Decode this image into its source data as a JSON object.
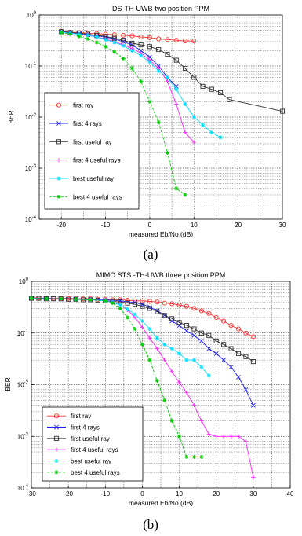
{
  "chart_data": [
    {
      "type": "line",
      "title": "DS-TH-UWB-two position PPM",
      "xlabel": "measured Eb/No (dB)",
      "ylabel": "BER",
      "caption": "(a)",
      "xlim": [
        -25,
        30
      ],
      "ylim": [
        0.0001,
        1
      ],
      "yscale": "log",
      "grid": true,
      "legend_position": "left-middle",
      "xticks": [
        "-20",
        "-10",
        "0",
        "10",
        "20",
        "30"
      ],
      "yticks": [
        "10",
        "10",
        "10",
        "10",
        "10"
      ],
      "ytick_exponents": [
        "0",
        "-1",
        "-2",
        "-3",
        "-4"
      ],
      "series": [
        {
          "name": "first ray",
          "color": "#ff3030",
          "marker": "circle",
          "dash": "solid",
          "x": [
            -20,
            -18,
            -16,
            -14,
            -12,
            -10,
            -8,
            -6,
            -4,
            -2,
            0,
            2,
            4,
            6,
            8,
            10
          ],
          "y": [
            0.48,
            0.46,
            0.45,
            0.44,
            0.43,
            0.42,
            0.41,
            0.4,
            0.39,
            0.37,
            0.36,
            0.34,
            0.33,
            0.32,
            0.31,
            0.31
          ]
        },
        {
          "name": "first 4 rays",
          "color": "#2020ff",
          "marker": "x",
          "dash": "solid",
          "x": [
            -20,
            -18,
            -16,
            -14,
            -12,
            -10,
            -8,
            -6,
            -4,
            -2,
            0,
            2,
            4,
            6
          ],
          "y": [
            0.47,
            0.45,
            0.43,
            0.41,
            0.39,
            0.37,
            0.34,
            0.3,
            0.26,
            0.2,
            0.15,
            0.1,
            0.06,
            0.04
          ]
        },
        {
          "name": "first useful ray",
          "color": "#303030",
          "marker": "square",
          "dash": "solid",
          "x": [
            -20,
            -18,
            -16,
            -14,
            -12,
            -10,
            -8,
            -6,
            -4,
            -2,
            0,
            2,
            4,
            6,
            8,
            10,
            12,
            14,
            16,
            18,
            30
          ],
          "y": [
            0.47,
            0.45,
            0.44,
            0.42,
            0.4,
            0.38,
            0.35,
            0.32,
            0.28,
            0.26,
            0.24,
            0.21,
            0.17,
            0.13,
            0.09,
            0.06,
            0.04,
            0.035,
            0.03,
            0.022,
            0.013
          ]
        },
        {
          "name": "first 4 useful rays",
          "color": "#ff20ff",
          "marker": "plus",
          "dash": "solid",
          "x": [
            -20,
            -18,
            -16,
            -14,
            -12,
            -10,
            -8,
            -6,
            -4,
            -2,
            0,
            2,
            4,
            6,
            8,
            10
          ],
          "y": [
            0.46,
            0.44,
            0.42,
            0.4,
            0.37,
            0.34,
            0.3,
            0.26,
            0.22,
            0.18,
            0.13,
            0.09,
            0.05,
            0.018,
            0.005,
            0.0032
          ]
        },
        {
          "name": "best useful ray",
          "color": "#00e0ff",
          "marker": "star",
          "dash": "solid",
          "x": [
            -20,
            -18,
            -16,
            -14,
            -12,
            -10,
            -8,
            -6,
            -4,
            -2,
            0,
            2,
            4,
            6,
            8,
            10,
            12,
            14,
            16
          ],
          "y": [
            0.46,
            0.44,
            0.42,
            0.4,
            0.37,
            0.33,
            0.29,
            0.25,
            0.2,
            0.16,
            0.12,
            0.08,
            0.06,
            0.035,
            0.018,
            0.01,
            0.007,
            0.005,
            0.004
          ]
        },
        {
          "name": "best 4 useful rays",
          "color": "#00cc00",
          "marker": "star",
          "dash": "dashed",
          "x": [
            -20,
            -18,
            -16,
            -14,
            -12,
            -10,
            -8,
            -6,
            -4,
            -2,
            0,
            2,
            4,
            6,
            8
          ],
          "y": [
            0.45,
            0.42,
            0.38,
            0.34,
            0.29,
            0.24,
            0.19,
            0.14,
            0.09,
            0.05,
            0.02,
            0.008,
            0.002,
            0.0004,
            0.0003
          ]
        }
      ]
    },
    {
      "type": "line",
      "title": "MIMO STS -TH-UWB three position PPM",
      "xlabel": "measured Eb/No (dB)",
      "ylabel": "BER",
      "caption": "(b)",
      "xlim": [
        -30,
        40
      ],
      "ylim": [
        0.0001,
        1
      ],
      "yscale": "log",
      "grid": true,
      "legend_position": "bottom-left",
      "xticks": [
        "-30",
        "-20",
        "-10",
        "0",
        "10",
        "20",
        "30",
        "40"
      ],
      "yticks": [
        "10",
        "10",
        "10",
        "10",
        "10"
      ],
      "ytick_exponents": [
        "0",
        "-1",
        "-2",
        "-3",
        "-4"
      ],
      "series": [
        {
          "name": "first ray",
          "color": "#ff3030",
          "marker": "circle",
          "dash": "solid",
          "x": [
            -30,
            -28,
            -26,
            -24,
            -22,
            -20,
            -18,
            -16,
            -14,
            -12,
            -10,
            -8,
            -6,
            -4,
            -2,
            0,
            2,
            4,
            6,
            8,
            10,
            12,
            14,
            16,
            18,
            20,
            22,
            24,
            26,
            28,
            30
          ],
          "y": [
            0.48,
            0.48,
            0.47,
            0.47,
            0.47,
            0.47,
            0.46,
            0.46,
            0.46,
            0.45,
            0.45,
            0.44,
            0.44,
            0.43,
            0.42,
            0.42,
            0.41,
            0.4,
            0.38,
            0.37,
            0.35,
            0.33,
            0.3,
            0.27,
            0.24,
            0.2,
            0.17,
            0.14,
            0.12,
            0.1,
            0.085
          ]
        },
        {
          "name": "first 4 rays",
          "color": "#2020ff",
          "marker": "x",
          "dash": "solid",
          "x": [
            -30,
            -26,
            -22,
            -18,
            -14,
            -10,
            -6,
            -2,
            0,
            2,
            4,
            6,
            8,
            10,
            12,
            14,
            16,
            18,
            20,
            22,
            24,
            26,
            28,
            30
          ],
          "y": [
            0.47,
            0.47,
            0.46,
            0.46,
            0.45,
            0.44,
            0.42,
            0.39,
            0.36,
            0.32,
            0.27,
            0.22,
            0.17,
            0.14,
            0.11,
            0.09,
            0.07,
            0.05,
            0.04,
            0.03,
            0.022,
            0.014,
            0.008,
            0.004
          ]
        },
        {
          "name": "first useful ray",
          "color": "#303030",
          "marker": "square",
          "dash": "solid",
          "x": [
            -30,
            -28,
            -26,
            -24,
            -22,
            -20,
            -18,
            -16,
            -14,
            -12,
            -10,
            -8,
            -6,
            -4,
            -2,
            0,
            2,
            4,
            6,
            8,
            10,
            12,
            14,
            16,
            18,
            20,
            22,
            24,
            26,
            28,
            30
          ],
          "y": [
            0.47,
            0.47,
            0.46,
            0.46,
            0.46,
            0.45,
            0.45,
            0.44,
            0.44,
            0.43,
            0.42,
            0.41,
            0.4,
            0.38,
            0.36,
            0.33,
            0.3,
            0.26,
            0.22,
            0.19,
            0.16,
            0.14,
            0.12,
            0.1,
            0.09,
            0.07,
            0.06,
            0.05,
            0.04,
            0.035,
            0.028
          ]
        },
        {
          "name": "first 4 useful rays",
          "color": "#ff20ff",
          "marker": "plus",
          "dash": "solid",
          "x": [
            -30,
            -26,
            -22,
            -18,
            -14,
            -10,
            -8,
            -6,
            -4,
            -2,
            0,
            2,
            4,
            6,
            8,
            10,
            12,
            14,
            16,
            18,
            20,
            22,
            24,
            26,
            28,
            30
          ],
          "y": [
            0.47,
            0.46,
            0.46,
            0.45,
            0.44,
            0.42,
            0.39,
            0.35,
            0.28,
            0.2,
            0.13,
            0.08,
            0.05,
            0.03,
            0.018,
            0.011,
            0.007,
            0.004,
            0.002,
            0.0011,
            0.001,
            0.001,
            0.001,
            0.001,
            0.0008,
            0.00016
          ]
        },
        {
          "name": "best useful ray",
          "color": "#00e0ff",
          "marker": "star",
          "dash": "solid",
          "x": [
            -30,
            -26,
            -22,
            -18,
            -14,
            -10,
            -8,
            -6,
            -4,
            -2,
            0,
            2,
            4,
            6,
            8,
            10,
            12,
            14,
            16,
            18
          ],
          "y": [
            0.47,
            0.46,
            0.46,
            0.45,
            0.44,
            0.42,
            0.39,
            0.35,
            0.29,
            0.23,
            0.17,
            0.12,
            0.08,
            0.06,
            0.05,
            0.04,
            0.03,
            0.03,
            0.022,
            0.015
          ]
        },
        {
          "name": "best 4 useful rays",
          "color": "#00cc00",
          "marker": "star",
          "dash": "dashed",
          "x": [
            -30,
            -26,
            -22,
            -18,
            -14,
            -10,
            -8,
            -6,
            -4,
            -2,
            0,
            2,
            4,
            6,
            8,
            10,
            12,
            14,
            16
          ],
          "y": [
            0.47,
            0.46,
            0.46,
            0.45,
            0.44,
            0.42,
            0.38,
            0.3,
            0.2,
            0.12,
            0.06,
            0.03,
            0.012,
            0.005,
            0.002,
            0.001,
            0.0004,
            0.0004,
            0.0004
          ]
        }
      ]
    }
  ]
}
